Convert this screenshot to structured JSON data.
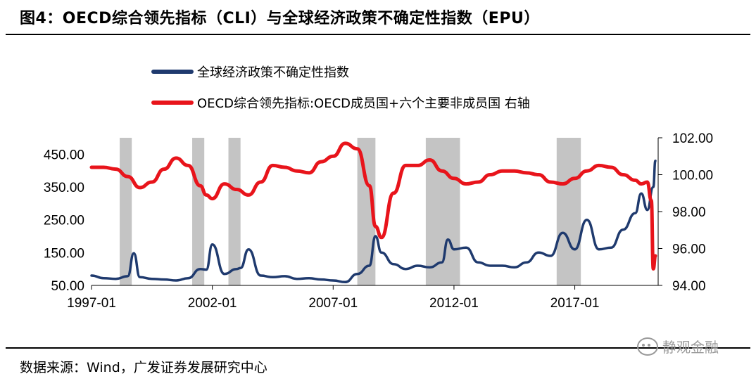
{
  "header": {
    "title": "图4：OECD综合领先指标（CLI）与全球经济政策不确定性指数（EPU）"
  },
  "footer": {
    "source": "数据来源：Wind，广发证券发展研究中心",
    "watermark": "静观金融"
  },
  "chart_data": {
    "type": "line",
    "title": "",
    "series": [
      {
        "name": "全球经济政策不确定性指数",
        "axis": "left",
        "color": "#1f3a6e",
        "x": [
          "1997-01",
          "1997-07",
          "1998-01",
          "1998-07",
          "1998-10",
          "1999-01",
          "1999-07",
          "2000-01",
          "2000-07",
          "2001-01",
          "2001-07",
          "2001-10",
          "2002-01",
          "2002-07",
          "2003-01",
          "2003-03",
          "2003-07",
          "2004-01",
          "2004-07",
          "2005-01",
          "2005-07",
          "2006-01",
          "2006-07",
          "2007-01",
          "2007-07",
          "2008-01",
          "2008-07",
          "2008-10",
          "2009-01",
          "2009-07",
          "2010-01",
          "2010-07",
          "2011-01",
          "2011-07",
          "2011-10",
          "2012-01",
          "2012-07",
          "2013-01",
          "2013-07",
          "2014-01",
          "2014-07",
          "2015-01",
          "2015-07",
          "2016-01",
          "2016-07",
          "2017-01",
          "2017-07",
          "2018-01",
          "2018-07",
          "2019-01",
          "2019-07",
          "2019-10",
          "2020-01",
          "2020-04",
          "2020-05"
        ],
        "values": [
          80,
          72,
          70,
          78,
          148,
          75,
          70,
          68,
          65,
          72,
          100,
          98,
          175,
          85,
          100,
          103,
          160,
          80,
          75,
          78,
          70,
          72,
          68,
          65,
          60,
          85,
          110,
          200,
          150,
          115,
          100,
          110,
          105,
          120,
          190,
          160,
          165,
          120,
          110,
          110,
          105,
          120,
          150,
          140,
          210,
          160,
          250,
          160,
          165,
          220,
          270,
          330,
          280,
          350,
          430
        ]
      },
      {
        "name": "OECD综合领先指标:OECD成员国+六个主要非成员国 右轴",
        "axis": "right",
        "color": "#e8141b",
        "x": [
          "1997-01",
          "1997-07",
          "1998-01",
          "1998-07",
          "1999-01",
          "1999-07",
          "2000-01",
          "2000-07",
          "2001-01",
          "2001-07",
          "2001-10",
          "2002-01",
          "2002-07",
          "2003-01",
          "2003-07",
          "2004-01",
          "2004-07",
          "2005-01",
          "2005-07",
          "2006-01",
          "2006-07",
          "2007-01",
          "2007-07",
          "2008-01",
          "2008-07",
          "2008-10",
          "2009-01",
          "2009-07",
          "2010-01",
          "2010-07",
          "2011-01",
          "2011-07",
          "2012-01",
          "2012-07",
          "2013-01",
          "2013-07",
          "2014-01",
          "2014-07",
          "2015-01",
          "2015-07",
          "2016-01",
          "2016-07",
          "2017-01",
          "2017-07",
          "2018-01",
          "2018-07",
          "2019-01",
          "2019-07",
          "2019-10",
          "2020-01",
          "2020-03",
          "2020-04",
          "2020-05"
        ],
        "values": [
          100.4,
          100.4,
          100.3,
          99.9,
          99.3,
          99.6,
          100.3,
          100.9,
          100.5,
          99.4,
          98.9,
          98.7,
          99.5,
          99.2,
          98.9,
          99.6,
          100.5,
          100.4,
          100.2,
          100.1,
          100.7,
          101.0,
          101.7,
          101.4,
          99.4,
          97.2,
          96.6,
          99.0,
          100.5,
          100.5,
          100.8,
          100.2,
          99.8,
          99.5,
          99.6,
          100.0,
          100.2,
          100.2,
          100.1,
          100.0,
          99.6,
          99.5,
          99.8,
          100.2,
          100.5,
          100.4,
          100.0,
          99.7,
          99.5,
          99.6,
          98.6,
          94.9,
          95.6
        ]
      }
    ],
    "shaded_periods": [
      [
        "1998-03",
        "1998-09"
      ],
      [
        "2001-03",
        "2001-09"
      ],
      [
        "2002-09",
        "2003-03"
      ],
      [
        "2008-01",
        "2008-10"
      ],
      [
        "2010-11",
        "2012-04"
      ],
      [
        "2016-04",
        "2017-04"
      ]
    ],
    "x_ticks": [
      "1997-01",
      "2002-01",
      "2007-01",
      "2012-01",
      "2017-01"
    ],
    "y_left": {
      "ticks": [
        "50.00",
        "150.00",
        "250.00",
        "350.00",
        "450.00"
      ],
      "lim": [
        50,
        500
      ]
    },
    "y_right": {
      "ticks": [
        "94.00",
        "96.00",
        "98.00",
        "100.00",
        "102.00"
      ],
      "lim": [
        94,
        102
      ]
    },
    "legend": "top-left"
  }
}
